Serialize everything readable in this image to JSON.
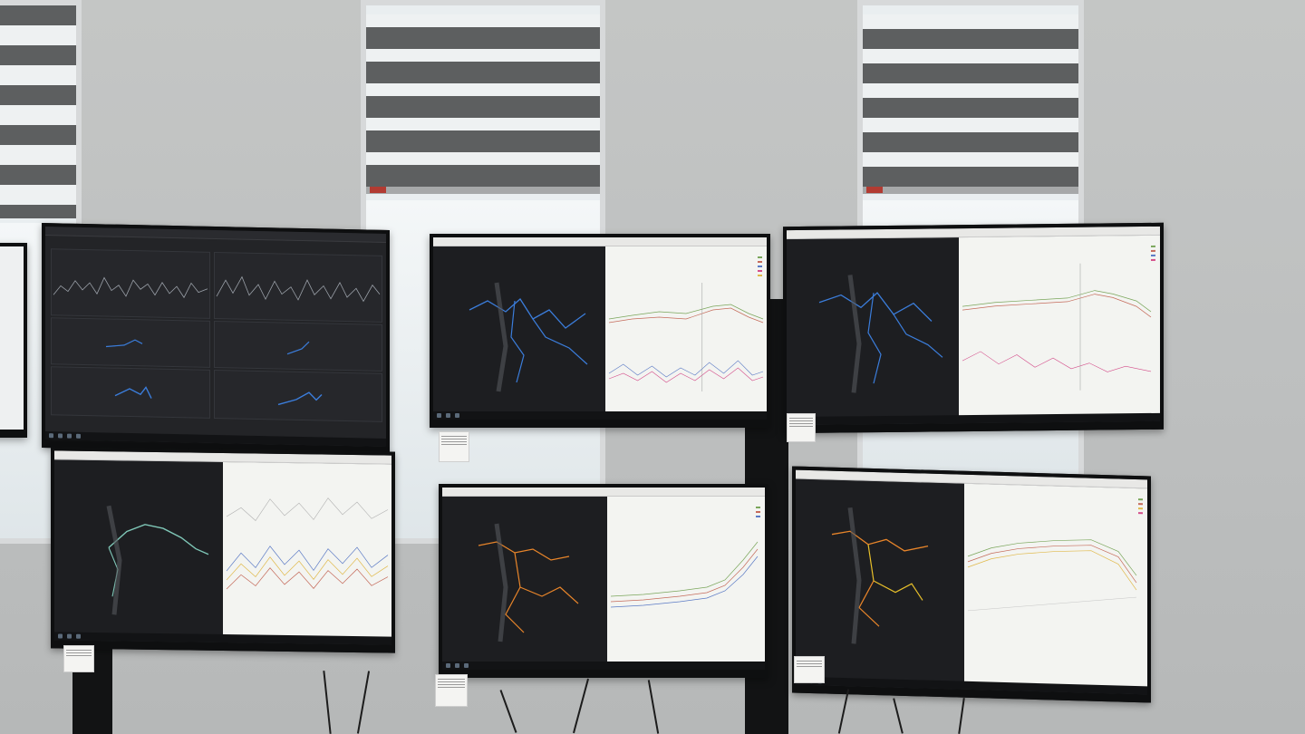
{
  "scene": {
    "description_colors": {
      "wall": "#bdbfbf",
      "window_glass": "#eef3f5",
      "blind_dark": "#5d5f60",
      "monitor_bezel": "#0e0f10",
      "map_background": "#1d1e21",
      "chart_background": "#f3f4f1",
      "route_blue": "#3b7ddb",
      "route_orange": "#e8852a",
      "route_teal": "#7fc7b7"
    },
    "monitors": [
      {
        "id": "top-left",
        "content": "dashboard-grid"
      },
      {
        "id": "top-middle",
        "content": "map-and-chart",
        "route_color": "blue"
      },
      {
        "id": "top-right",
        "content": "map-and-chart",
        "route_color": "blue"
      },
      {
        "id": "bottom-left",
        "content": "map-and-chart",
        "route_color": "teal"
      },
      {
        "id": "bottom-middle",
        "content": "map-and-chart",
        "route_color": "orange"
      },
      {
        "id": "bottom-right",
        "content": "map-and-chart",
        "route_color": "orange"
      }
    ]
  }
}
